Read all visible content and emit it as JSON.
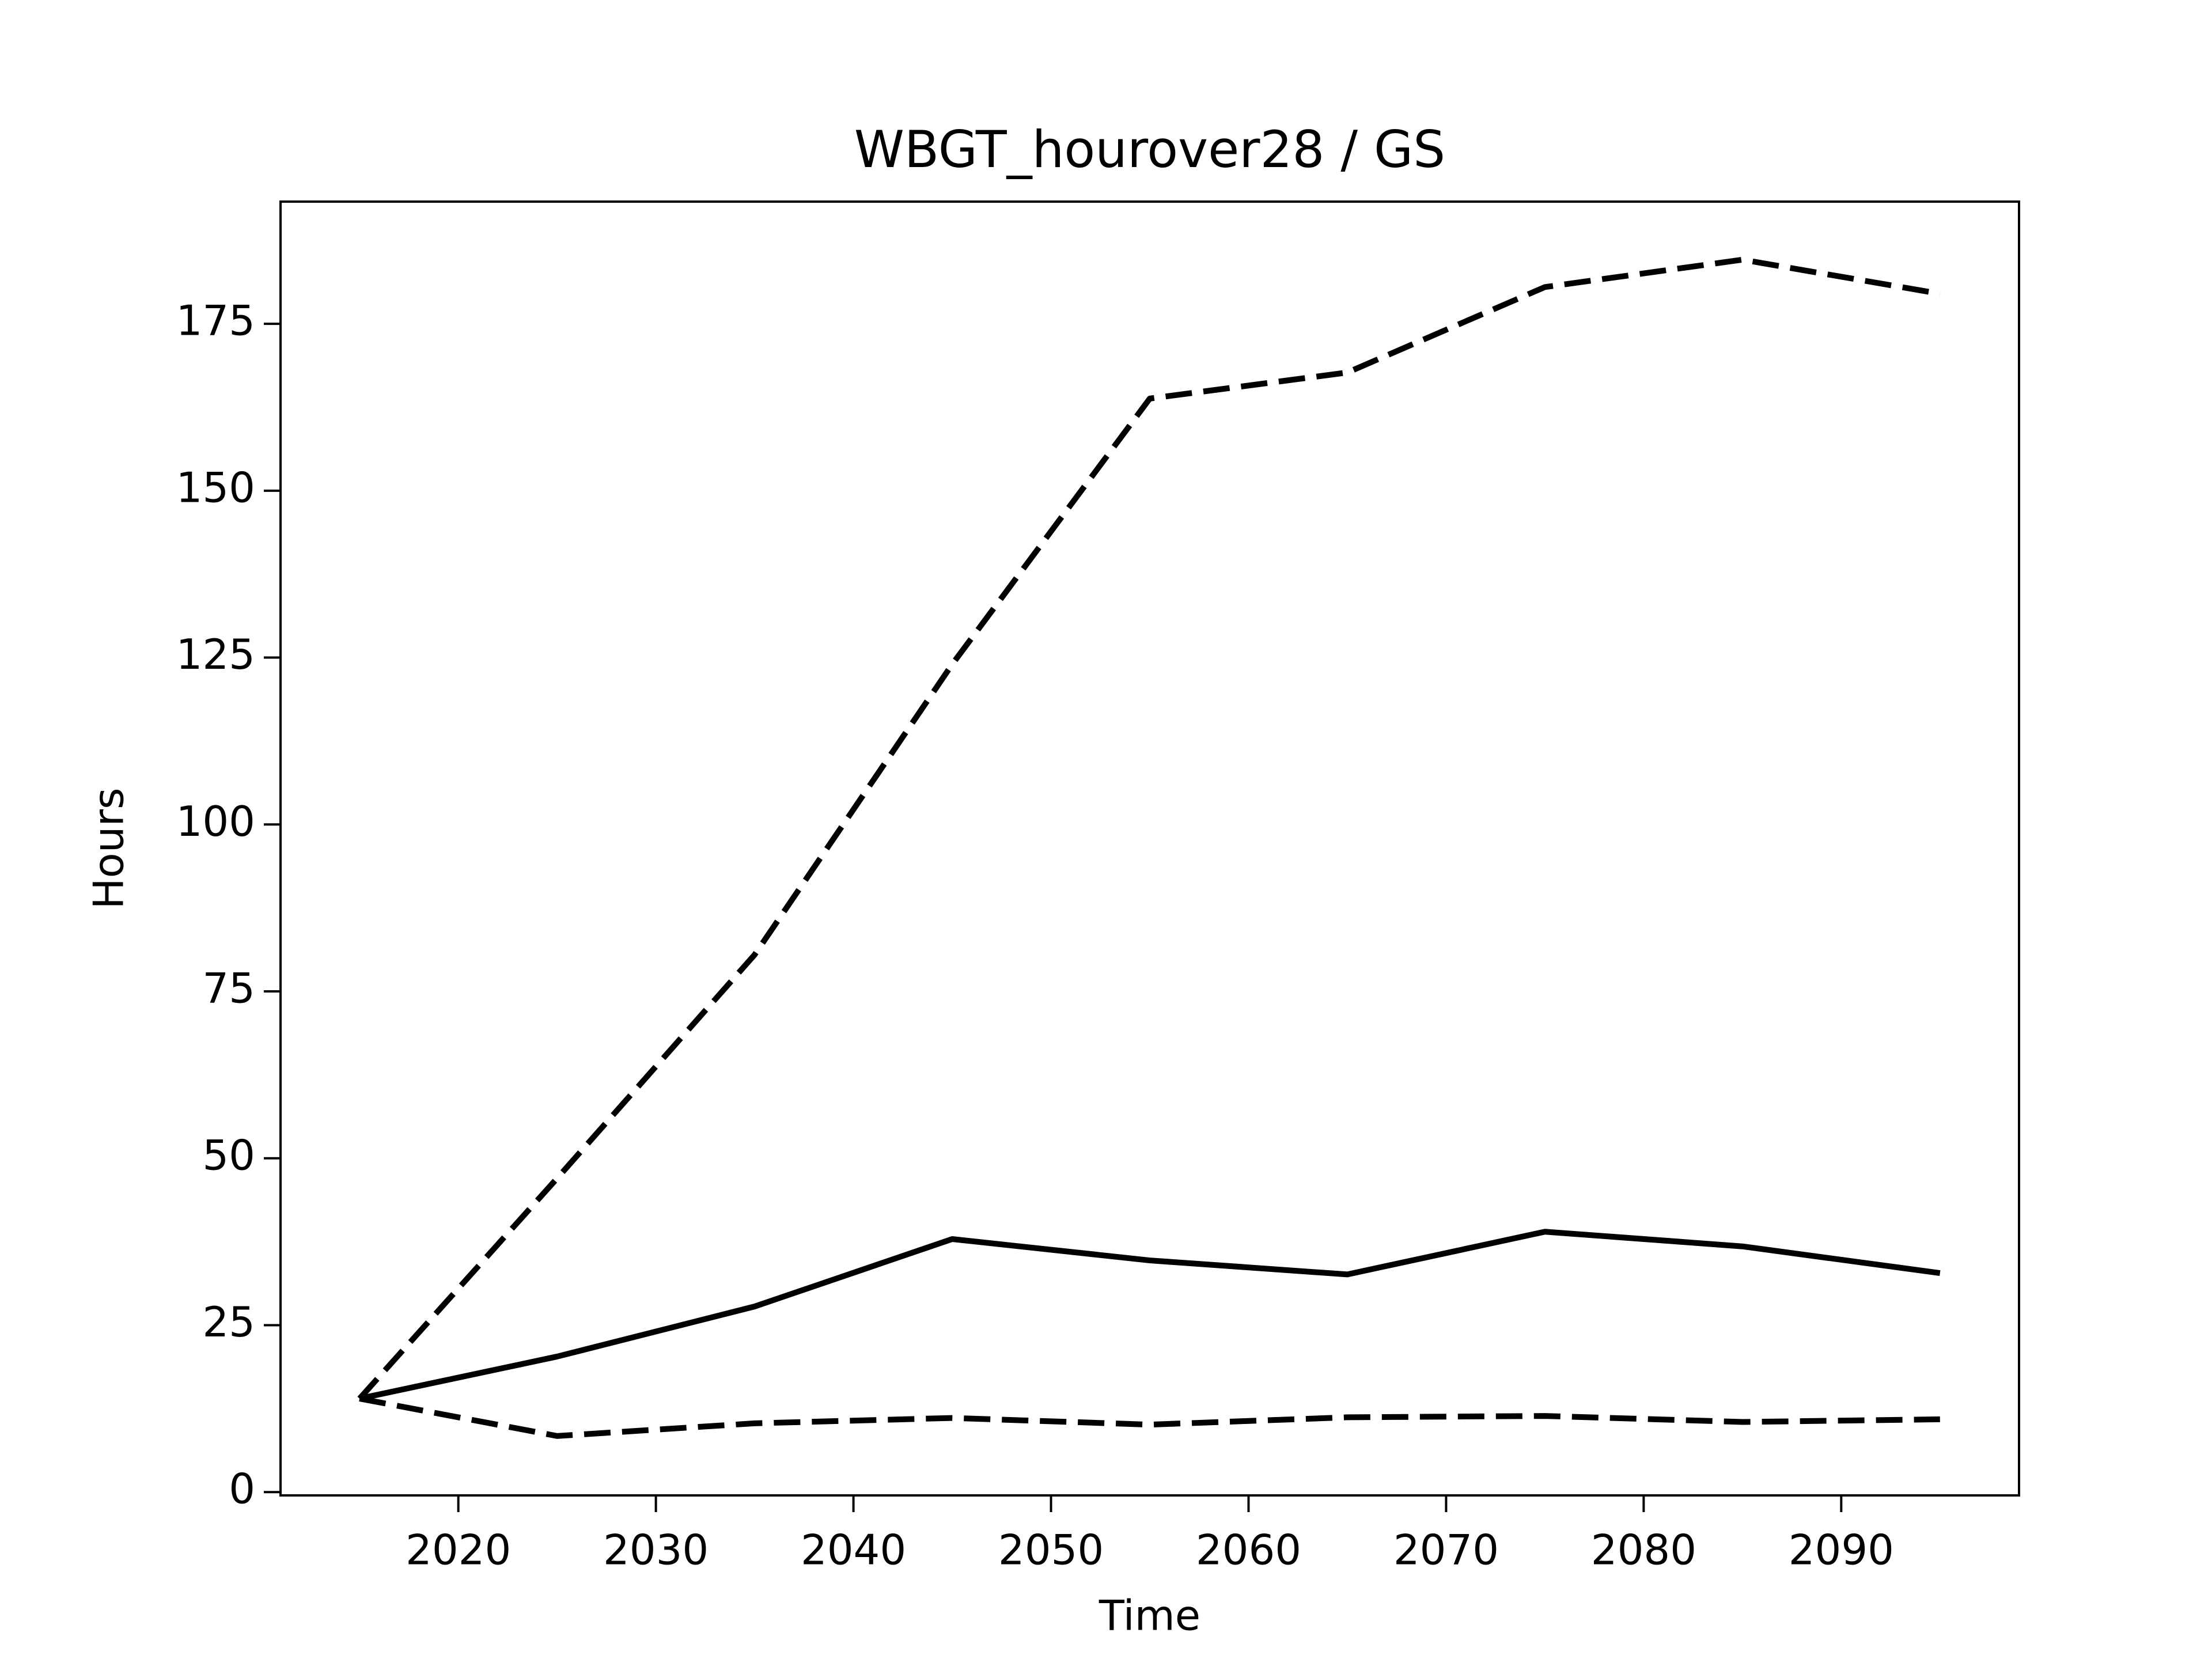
{
  "chart_data": {
    "type": "line",
    "title": "WBGT_hourover28 / GS",
    "xlabel": "Time",
    "ylabel": "Hours",
    "x": [
      2015,
      2025,
      2035,
      2045,
      2055,
      2065,
      2075,
      2085,
      2095
    ],
    "series": [
      {
        "color": "#000000",
        "linestyle": "dashed",
        "values": [
          14,
          47,
          80.5,
          124,
          163.8,
          167.7,
          180.5,
          184.6,
          179.5
        ]
      },
      {
        "color": "#000000",
        "linestyle": "solid",
        "values": [
          14,
          20.3,
          27.8,
          37.9,
          34.7,
          32.6,
          39,
          36.8,
          32.8
        ]
      },
      {
        "color": "#000000",
        "linestyle": "dashed",
        "values": [
          14,
          8.4,
          10.3,
          11.1,
          10.1,
          11.2,
          11.4,
          10.5,
          10.9
        ]
      }
    ],
    "xlim": [
      2011,
      2099
    ],
    "xticks": [
      2020,
      2030,
      2040,
      2050,
      2060,
      2070,
      2080,
      2090
    ],
    "ylim": [
      -0.5,
      193.3
    ],
    "yticks": [
      0,
      25,
      50,
      75,
      100,
      125,
      150,
      175
    ],
    "grid": false
  }
}
